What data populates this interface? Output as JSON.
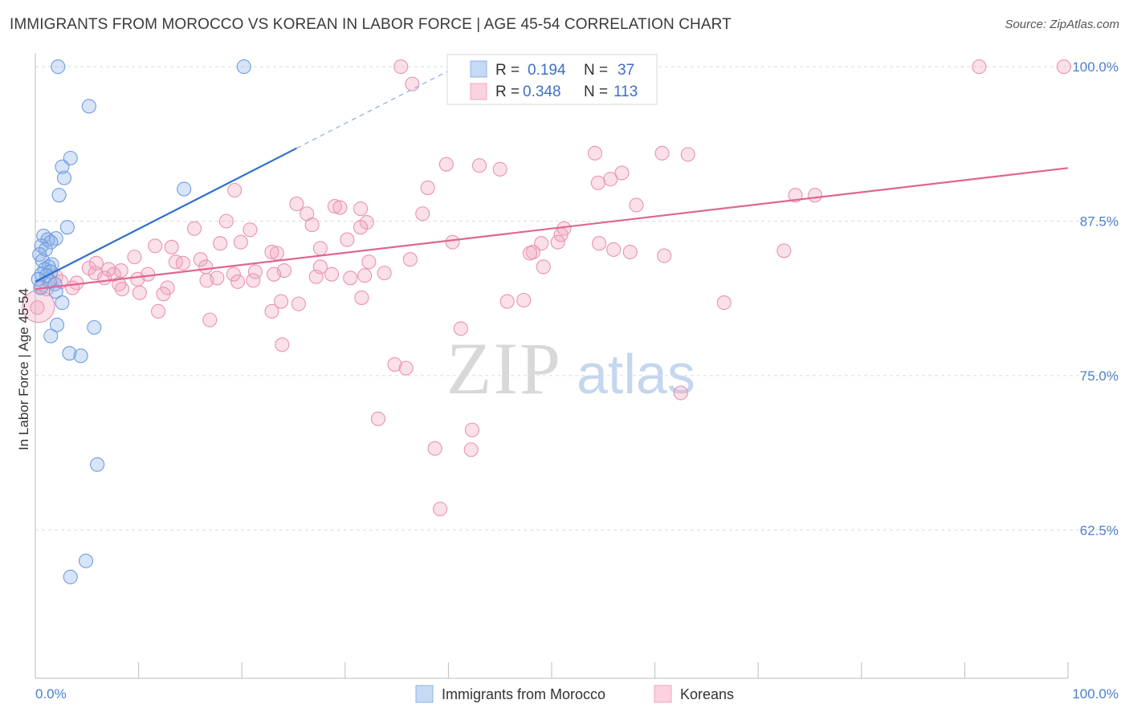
{
  "header": {
    "title": "IMMIGRANTS FROM MOROCCO VS KOREAN IN LABOR FORCE | AGE 45-54 CORRELATION CHART",
    "source": "Source: ZipAtlas.com"
  },
  "watermark": {
    "zip": "ZIP",
    "atlas": "atlas"
  },
  "colors": {
    "blue": "#8fb3e8",
    "blue_line": "#2f6fcf",
    "pink": "#f2a6c0",
    "pink_line": "#e0668f",
    "tick": "#4a7fd0"
  },
  "stats_box": {
    "rows": [
      {
        "r_label": "R =",
        "r_value": "0.194",
        "n_label": "N =",
        "n_value": "37"
      },
      {
        "r_label": "R =",
        "r_value": "0.348",
        "n_label": "N =",
        "n_value": "113"
      }
    ]
  },
  "chart_data": {
    "type": "scatter",
    "title": "IMMIGRANTS FROM MOROCCO VS KOREAN IN LABOR FORCE | AGE 45-54 CORRELATION CHART",
    "xlabel": "",
    "ylabel": "In Labor Force | Age 45-54",
    "xlim": [
      0,
      100
    ],
    "ylim": [
      50.5,
      101.5
    ],
    "x_tick_labels": [
      "0.0%",
      "100.0%"
    ],
    "y_ticks": [
      62.5,
      75.0,
      87.5,
      100.0
    ],
    "y_tick_labels": [
      "62.5%",
      "75.0%",
      "87.5%",
      "100.0%"
    ],
    "grid": true,
    "legend": "bottom-center",
    "series": [
      {
        "name": "Immigrants from Morocco",
        "color": "#8fb3e8",
        "trend": {
          "x": [
            0,
            25.3
          ],
          "y": [
            82.6,
            93.4
          ],
          "dashed_to": [
            40.8,
            100.0
          ]
        },
        "points": [
          [
            2.2,
            100.0
          ],
          [
            20.2,
            100.0
          ],
          [
            5.2,
            96.8
          ],
          [
            3.4,
            92.6
          ],
          [
            2.6,
            91.9
          ],
          [
            2.8,
            91.0
          ],
          [
            2.3,
            89.6
          ],
          [
            14.4,
            90.1
          ],
          [
            3.1,
            87.0
          ],
          [
            0.8,
            86.3
          ],
          [
            2.0,
            86.1
          ],
          [
            1.2,
            86.0
          ],
          [
            1.5,
            85.8
          ],
          [
            0.6,
            85.5
          ],
          [
            1.0,
            85.2
          ],
          [
            0.4,
            84.8
          ],
          [
            0.7,
            84.3
          ],
          [
            1.6,
            84.0
          ],
          [
            1.3,
            83.8
          ],
          [
            0.9,
            83.6
          ],
          [
            1.5,
            83.4
          ],
          [
            0.6,
            83.2
          ],
          [
            1.1,
            83.1
          ],
          [
            0.3,
            82.8
          ],
          [
            1.4,
            82.6
          ],
          [
            1.9,
            82.4
          ],
          [
            0.5,
            82.1
          ],
          [
            2.0,
            81.8
          ],
          [
            2.6,
            80.9
          ],
          [
            5.7,
            78.9
          ],
          [
            2.1,
            79.1
          ],
          [
            1.5,
            78.2
          ],
          [
            3.3,
            76.8
          ],
          [
            4.4,
            76.6
          ],
          [
            6.0,
            67.8
          ],
          [
            4.9,
            60.0
          ],
          [
            3.4,
            58.7
          ]
        ]
      },
      {
        "name": "Koreans",
        "color": "#f2a6c0",
        "trend": {
          "x": [
            0,
            100
          ],
          "y": [
            82.0,
            91.8
          ]
        },
        "points": [
          [
            35.4,
            100.0
          ],
          [
            40.6,
            100.0
          ],
          [
            91.4,
            100.0
          ],
          [
            99.6,
            100.0
          ],
          [
            36.5,
            98.6
          ],
          [
            54.2,
            93.0
          ],
          [
            60.7,
            93.0
          ],
          [
            63.2,
            92.9
          ],
          [
            39.8,
            92.1
          ],
          [
            43.0,
            92.0
          ],
          [
            45.0,
            91.7
          ],
          [
            56.8,
            91.4
          ],
          [
            55.7,
            90.9
          ],
          [
            54.5,
            90.6
          ],
          [
            38.0,
            90.2
          ],
          [
            19.3,
            90.0
          ],
          [
            73.6,
            89.6
          ],
          [
            75.5,
            89.6
          ],
          [
            25.3,
            88.9
          ],
          [
            29.0,
            88.7
          ],
          [
            29.5,
            88.6
          ],
          [
            31.5,
            88.5
          ],
          [
            26.3,
            88.1
          ],
          [
            37.5,
            88.1
          ],
          [
            58.2,
            88.8
          ],
          [
            18.5,
            87.5
          ],
          [
            32.1,
            87.4
          ],
          [
            26.8,
            87.2
          ],
          [
            15.4,
            86.9
          ],
          [
            20.8,
            86.8
          ],
          [
            51.2,
            86.9
          ],
          [
            50.9,
            86.4
          ],
          [
            30.2,
            86.0
          ],
          [
            17.9,
            85.7
          ],
          [
            19.9,
            85.8
          ],
          [
            50.6,
            85.8
          ],
          [
            49.0,
            85.7
          ],
          [
            40.4,
            85.8
          ],
          [
            54.6,
            85.7
          ],
          [
            11.6,
            85.5
          ],
          [
            13.2,
            85.4
          ],
          [
            27.6,
            85.3
          ],
          [
            56.0,
            85.2
          ],
          [
            57.6,
            85.0
          ],
          [
            48.2,
            85.0
          ],
          [
            47.9,
            84.9
          ],
          [
            72.5,
            85.1
          ],
          [
            23.4,
            84.9
          ],
          [
            22.9,
            85.0
          ],
          [
            60.9,
            84.7
          ],
          [
            9.6,
            84.6
          ],
          [
            16.0,
            84.4
          ],
          [
            13.6,
            84.2
          ],
          [
            14.3,
            84.1
          ],
          [
            32.3,
            84.2
          ],
          [
            36.3,
            84.4
          ],
          [
            16.5,
            83.8
          ],
          [
            27.6,
            83.8
          ],
          [
            5.2,
            83.7
          ],
          [
            7.1,
            83.6
          ],
          [
            8.3,
            83.5
          ],
          [
            21.3,
            83.4
          ],
          [
            24.1,
            83.5
          ],
          [
            49.2,
            83.8
          ],
          [
            5.8,
            83.3
          ],
          [
            7.6,
            83.2
          ],
          [
            10.9,
            83.2
          ],
          [
            19.2,
            83.2
          ],
          [
            23.1,
            83.2
          ],
          [
            28.7,
            83.2
          ],
          [
            31.9,
            83.1
          ],
          [
            2.0,
            83.0
          ],
          [
            6.7,
            82.9
          ],
          [
            9.9,
            82.8
          ],
          [
            16.6,
            82.7
          ],
          [
            17.6,
            82.9
          ],
          [
            27.2,
            83.0
          ],
          [
            30.5,
            82.9
          ],
          [
            2.5,
            82.6
          ],
          [
            4.0,
            82.5
          ],
          [
            8.1,
            82.4
          ],
          [
            0.6,
            82.2
          ],
          [
            1.1,
            82.0
          ],
          [
            3.6,
            82.1
          ],
          [
            8.4,
            82.0
          ],
          [
            12.8,
            82.1
          ],
          [
            10.1,
            81.7
          ],
          [
            12.4,
            81.6
          ],
          [
            31.6,
            81.3
          ],
          [
            23.8,
            81.0
          ],
          [
            25.5,
            80.8
          ],
          [
            45.7,
            81.0
          ],
          [
            66.7,
            80.9
          ],
          [
            0.2,
            80.5
          ],
          [
            11.9,
            80.2
          ],
          [
            22.9,
            80.2
          ],
          [
            16.9,
            79.5
          ],
          [
            41.2,
            78.8
          ],
          [
            23.9,
            77.5
          ],
          [
            34.8,
            75.9
          ],
          [
            35.9,
            75.6
          ],
          [
            62.5,
            73.6
          ],
          [
            33.2,
            71.5
          ],
          [
            42.3,
            70.6
          ],
          [
            38.7,
            69.1
          ],
          [
            42.2,
            69.0
          ],
          [
            39.2,
            64.2
          ],
          [
            31.5,
            87.0
          ],
          [
            33.8,
            83.3
          ],
          [
            5.9,
            84.1
          ],
          [
            19.6,
            82.6
          ],
          [
            21.1,
            82.7
          ],
          [
            47.3,
            81.1
          ]
        ]
      }
    ]
  },
  "legend": {
    "items": [
      {
        "label": "Immigrants from Morocco",
        "color": "#8fb3e8"
      },
      {
        "label": "Koreans",
        "color": "#f2a6c0"
      }
    ]
  }
}
